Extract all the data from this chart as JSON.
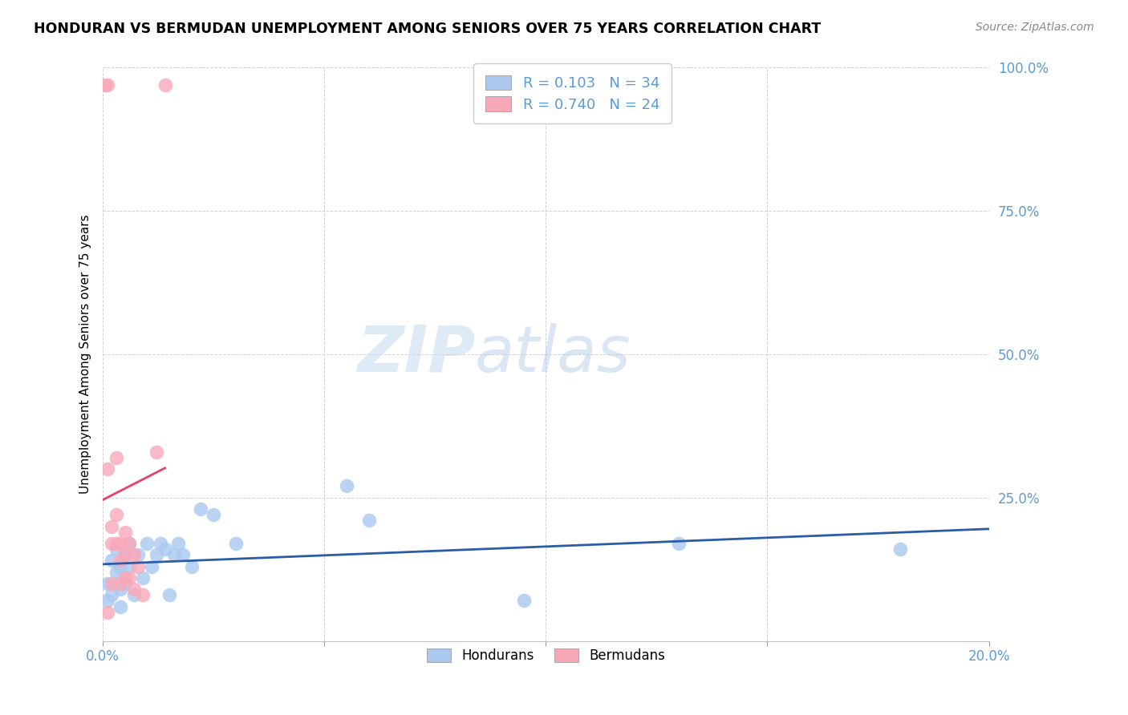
{
  "title": "HONDURAN VS BERMUDAN UNEMPLOYMENT AMONG SENIORS OVER 75 YEARS CORRELATION CHART",
  "source": "Source: ZipAtlas.com",
  "ylabel": "Unemployment Among Seniors over 75 years",
  "tick_color": "#5b9bd5",
  "background_color": "#ffffff",
  "watermark_zip": "ZIP",
  "watermark_atlas": "atlas",
  "honduran_color": "#aac8f0",
  "honduran_line_color": "#2a5ca8",
  "bermudan_color": "#f8a8b8",
  "bermudan_line_color": "#e84070",
  "legend_r1": "0.103",
  "legend_n1": "34",
  "legend_r2": "0.740",
  "legend_n2": "24",
  "honduran_x": [
    0.001,
    0.001,
    0.002,
    0.002,
    0.003,
    0.003,
    0.004,
    0.004,
    0.004,
    0.005,
    0.005,
    0.006,
    0.006,
    0.007,
    0.008,
    0.009,
    0.01,
    0.011,
    0.012,
    0.013,
    0.014,
    0.015,
    0.016,
    0.017,
    0.018,
    0.02,
    0.022,
    0.025,
    0.03,
    0.055,
    0.06,
    0.095,
    0.13,
    0.18
  ],
  "honduran_y": [
    0.1,
    0.07,
    0.14,
    0.08,
    0.12,
    0.16,
    0.13,
    0.09,
    0.06,
    0.15,
    0.1,
    0.17,
    0.13,
    0.08,
    0.15,
    0.11,
    0.17,
    0.13,
    0.15,
    0.17,
    0.16,
    0.08,
    0.15,
    0.17,
    0.15,
    0.13,
    0.23,
    0.22,
    0.17,
    0.27,
    0.21,
    0.07,
    0.17,
    0.16
  ],
  "bermudan_x": [
    0.0005,
    0.001,
    0.001,
    0.001,
    0.002,
    0.002,
    0.002,
    0.003,
    0.003,
    0.003,
    0.004,
    0.004,
    0.004,
    0.005,
    0.005,
    0.005,
    0.006,
    0.006,
    0.007,
    0.007,
    0.008,
    0.009,
    0.012,
    0.014
  ],
  "bermudan_y": [
    0.97,
    0.97,
    0.3,
    0.05,
    0.2,
    0.17,
    0.1,
    0.22,
    0.17,
    0.32,
    0.17,
    0.14,
    0.1,
    0.19,
    0.15,
    0.11,
    0.17,
    0.11,
    0.15,
    0.09,
    0.13,
    0.08,
    0.33,
    0.97
  ],
  "xmin": 0.0,
  "xmax": 0.2,
  "ymin": 0.0,
  "ymax": 1.0,
  "xtick_positions": [
    0.0,
    0.05,
    0.1,
    0.15,
    0.2
  ],
  "xtick_labels": [
    "0.0%",
    "",
    "",
    "",
    "20.0%"
  ],
  "ytick_positions": [
    0.0,
    0.25,
    0.5,
    0.75,
    1.0
  ],
  "ytick_labels": [
    "",
    "25.0%",
    "50.0%",
    "75.0%",
    "100.0%"
  ]
}
